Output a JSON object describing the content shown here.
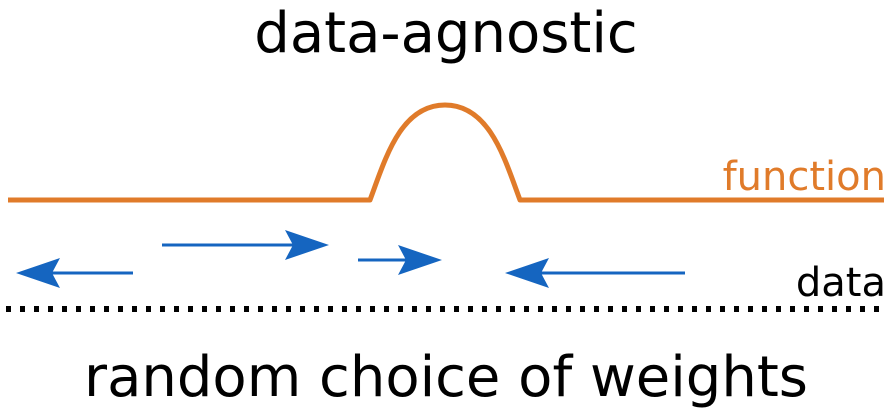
{
  "title": "data-agnostic",
  "caption": "random choice of weights",
  "function_label": "function",
  "data_label": "data",
  "colors": {
    "function": "#E07B2A",
    "arrows": "#1565C0",
    "text": "#000000",
    "data_dots": "#000000"
  },
  "arrows": [
    {
      "direction": "left"
    },
    {
      "direction": "right"
    },
    {
      "direction": "right"
    },
    {
      "direction": "left"
    }
  ]
}
